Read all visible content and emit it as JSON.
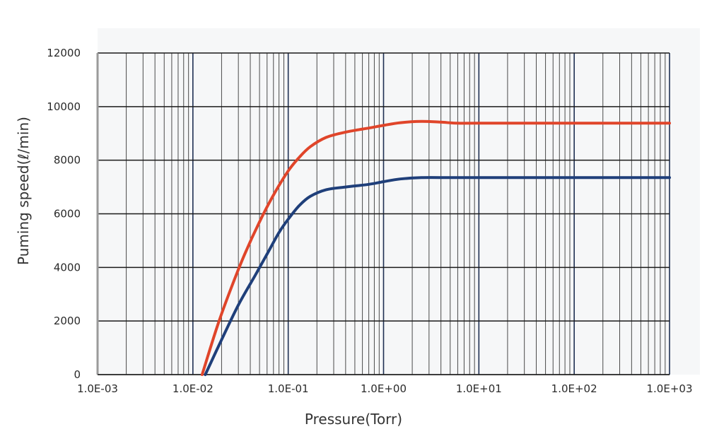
{
  "chart_data": {
    "type": "line",
    "title": "",
    "xlabel": "Pressure(Torr)",
    "ylabel": "Puming speed(ℓ/min)",
    "x_scale": "log",
    "xlim": [
      0.001,
      1000
    ],
    "ylim": [
      0,
      12000
    ],
    "x_tick_values": [
      0.001,
      0.01,
      0.1,
      1,
      10,
      100,
      1000
    ],
    "x_tick_labels": [
      "1.0E-03",
      "1.0E-02",
      "1.0E-01",
      "1.0E+00",
      "1.0E+01",
      "1.0E+02",
      "1.0E+03"
    ],
    "y_tick_values": [
      0,
      2000,
      4000,
      6000,
      8000,
      10000,
      12000
    ],
    "y_tick_labels": [
      "0",
      "2000",
      "4000",
      "6000",
      "8000",
      "10000",
      "12000"
    ],
    "grid": true,
    "series": [
      {
        "color": "#e0452a",
        "points": [
          [
            0.0125,
            0
          ],
          [
            0.018,
            1800
          ],
          [
            0.025,
            3200
          ],
          [
            0.035,
            4500
          ],
          [
            0.05,
            5700
          ],
          [
            0.07,
            6700
          ],
          [
            0.1,
            7600
          ],
          [
            0.13,
            8100
          ],
          [
            0.17,
            8500
          ],
          [
            0.25,
            8850
          ],
          [
            0.4,
            9050
          ],
          [
            0.7,
            9200
          ],
          [
            1,
            9300
          ],
          [
            1.5,
            9400
          ],
          [
            2.5,
            9450
          ],
          [
            4,
            9420
          ],
          [
            6,
            9380
          ],
          [
            10,
            9380
          ],
          [
            100,
            9380
          ],
          [
            1000,
            9380
          ]
        ]
      },
      {
        "color": "#1f3f7a",
        "points": [
          [
            0.0135,
            0
          ],
          [
            0.02,
            1300
          ],
          [
            0.03,
            2600
          ],
          [
            0.045,
            3700
          ],
          [
            0.06,
            4500
          ],
          [
            0.08,
            5300
          ],
          [
            0.1,
            5800
          ],
          [
            0.13,
            6300
          ],
          [
            0.17,
            6650
          ],
          [
            0.25,
            6900
          ],
          [
            0.4,
            7000
          ],
          [
            0.7,
            7100
          ],
          [
            1,
            7200
          ],
          [
            1.5,
            7300
          ],
          [
            2.5,
            7350
          ],
          [
            5,
            7350
          ],
          [
            10,
            7350
          ],
          [
            100,
            7350
          ],
          [
            1000,
            7350
          ]
        ]
      }
    ]
  }
}
